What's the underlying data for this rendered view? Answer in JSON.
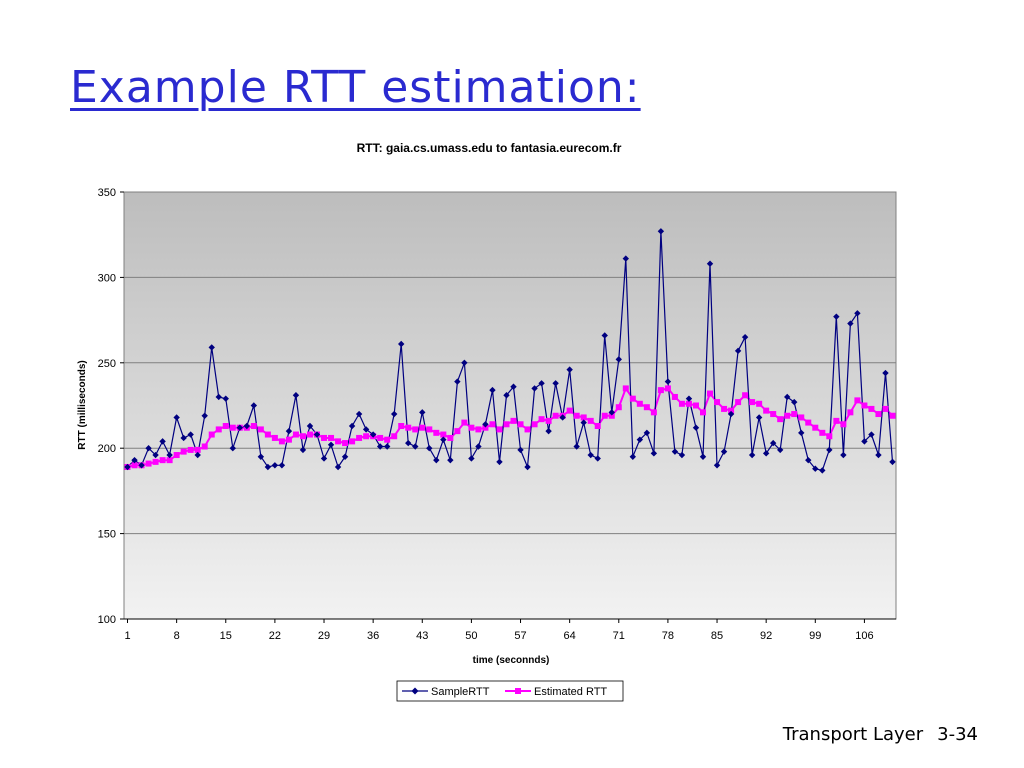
{
  "slide": {
    "title": "Example RTT estimation:",
    "footer_left": "Transport Layer",
    "footer_right": "3-34"
  },
  "colors": {
    "title": "#2a2ad0",
    "sample": "#000080",
    "estimated": "#ff00ff",
    "plot_top": "#bdbdbd",
    "plot_bottom": "#f2f2f2"
  },
  "chart_data": {
    "type": "line",
    "title": "RTT: gaia.cs.umass.edu to fantasia.eurecom.fr",
    "xlabel": "time (seconnds)",
    "ylabel": "RTT (milliseconds)",
    "ylim": [
      100,
      350
    ],
    "yticks": [
      100,
      150,
      200,
      250,
      300,
      350
    ],
    "xtick_labels": [
      "1",
      "8",
      "15",
      "22",
      "29",
      "36",
      "43",
      "50",
      "57",
      "64",
      "71",
      "78",
      "85",
      "92",
      "99",
      "106"
    ],
    "grid": true,
    "legend": "bottom",
    "x": [
      1,
      2,
      3,
      4,
      5,
      6,
      7,
      8,
      9,
      10,
      11,
      12,
      13,
      14,
      15,
      16,
      17,
      18,
      19,
      20,
      21,
      22,
      23,
      24,
      25,
      26,
      27,
      28,
      29,
      30,
      31,
      32,
      33,
      34,
      35,
      36,
      37,
      38,
      39,
      40,
      41,
      42,
      43,
      44,
      45,
      46,
      47,
      48,
      49,
      50,
      51,
      52,
      53,
      54,
      55,
      56,
      57,
      58,
      59,
      60,
      61,
      62,
      63,
      64,
      65,
      66,
      67,
      68,
      69,
      70,
      71,
      72,
      73,
      74,
      75,
      76,
      77,
      78,
      79,
      80,
      81,
      82,
      83,
      84,
      85,
      86,
      87,
      88,
      89,
      90,
      91,
      92,
      93,
      94,
      95,
      96,
      97,
      98,
      99,
      100,
      101,
      102,
      103,
      104,
      105,
      106,
      107,
      108,
      109,
      110
    ],
    "series": [
      {
        "name": "SampleRTT",
        "marker": "diamond",
        "values": [
          189,
          193,
          190,
          200,
          196,
          204,
          196,
          218,
          206,
          208,
          196,
          219,
          259,
          230,
          229,
          200,
          212,
          213,
          225,
          195,
          189,
          190,
          190,
          210,
          231,
          199,
          213,
          208,
          194,
          202,
          189,
          195,
          213,
          220,
          211,
          208,
          201,
          201,
          220,
          261,
          203,
          201,
          221,
          200,
          193,
          205,
          193,
          239,
          250,
          194,
          201,
          214,
          234,
          192,
          231,
          236,
          199,
          189,
          235,
          238,
          210,
          238,
          218,
          246,
          201,
          215,
          196,
          194,
          266,
          221,
          252,
          311,
          195,
          205,
          209,
          197,
          327,
          239,
          198,
          196,
          229,
          212,
          195,
          308,
          190,
          198,
          220,
          257,
          265,
          196,
          218,
          197,
          203,
          199,
          230,
          227,
          209,
          193,
          188,
          187,
          199,
          277,
          196,
          273,
          279,
          204,
          208,
          196,
          244,
          192
        ]
      },
      {
        "name": "Estimated RTT",
        "marker": "square",
        "values": [
          189,
          190,
          190,
          191,
          192,
          193,
          193,
          196,
          198,
          199,
          199,
          201,
          208,
          211,
          213,
          212,
          212,
          212,
          213,
          211,
          208,
          206,
          204,
          205,
          208,
          207,
          208,
          208,
          206,
          206,
          204,
          203,
          204,
          206,
          207,
          207,
          206,
          205,
          207,
          213,
          212,
          211,
          212,
          211,
          209,
          208,
          206,
          210,
          215,
          212,
          211,
          212,
          214,
          211,
          214,
          216,
          214,
          211,
          214,
          217,
          216,
          219,
          219,
          222,
          219,
          218,
          216,
          213,
          219,
          219,
          224,
          235,
          229,
          226,
          224,
          221,
          234,
          235,
          230,
          226,
          226,
          225,
          221,
          232,
          227,
          223,
          222,
          227,
          231,
          227,
          226,
          222,
          220,
          217,
          219,
          220,
          218,
          215,
          212,
          209,
          207,
          216,
          214,
          221,
          228,
          225,
          223,
          220,
          223,
          219
        ]
      }
    ]
  }
}
